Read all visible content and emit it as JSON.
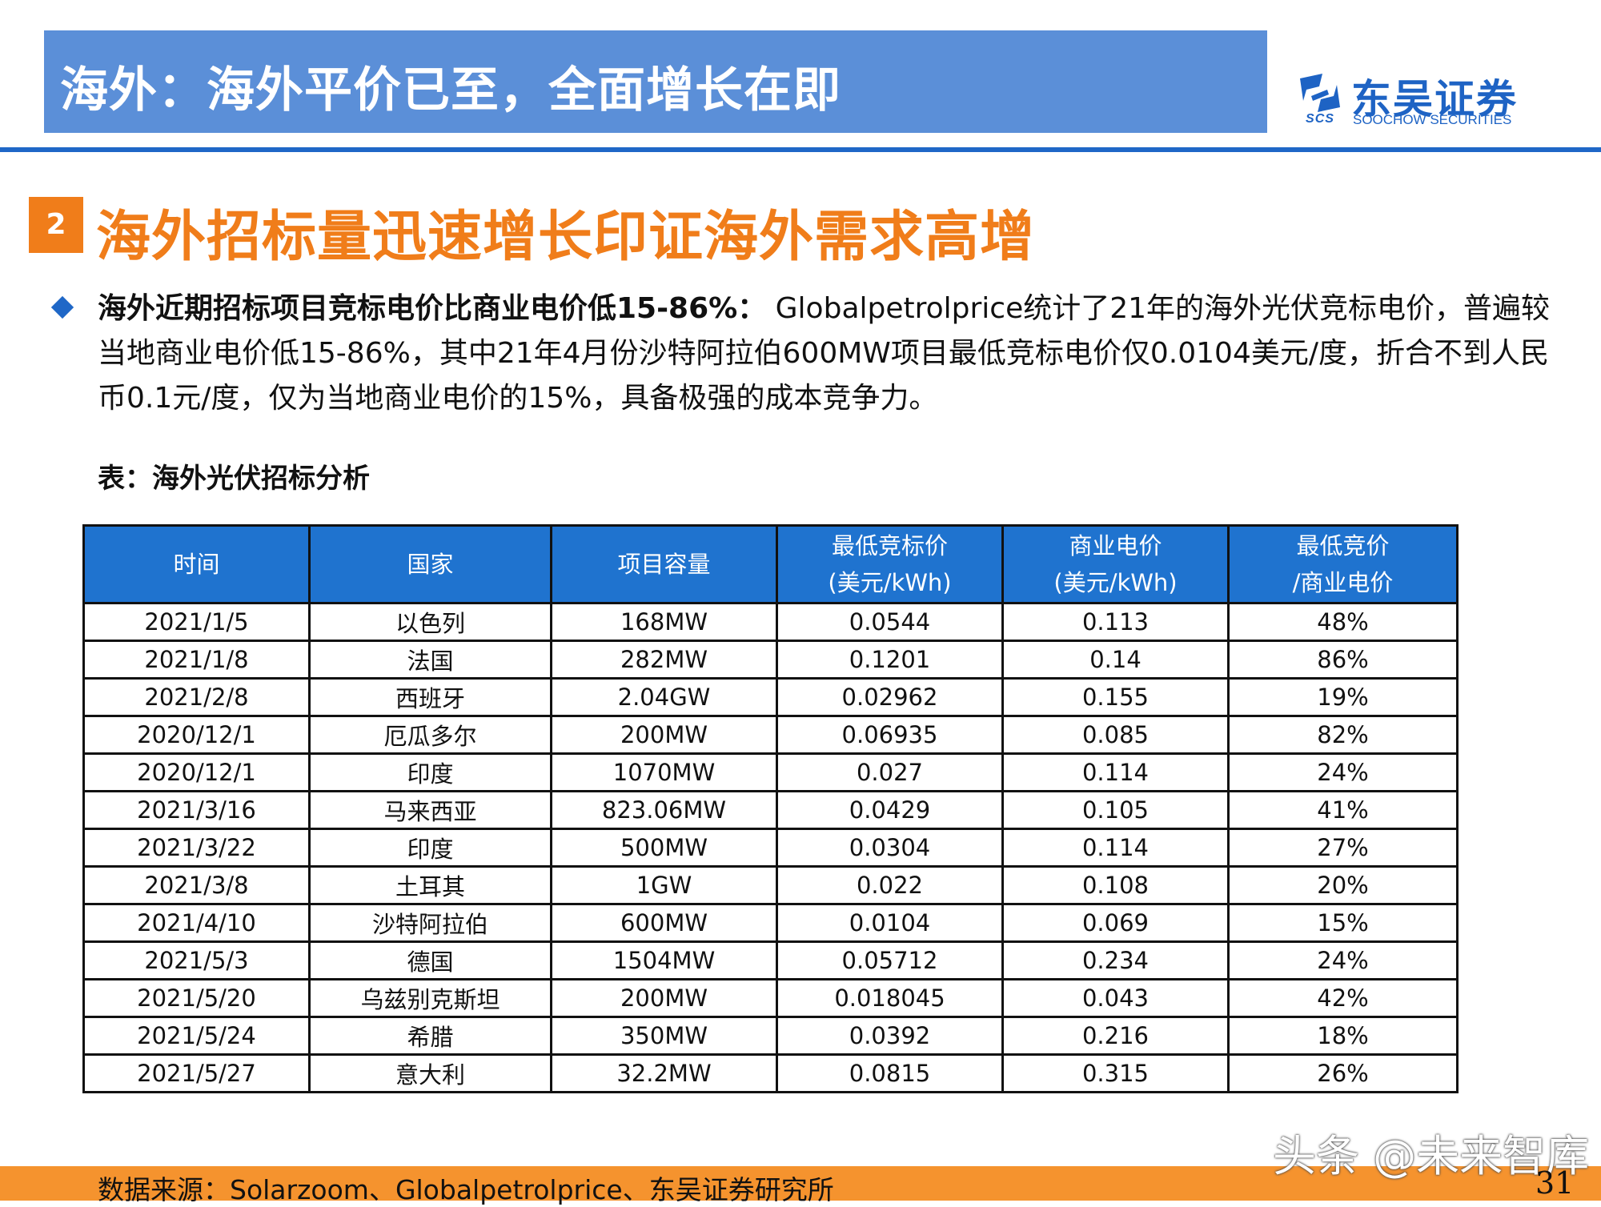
{
  "header": {
    "title": "海外：海外平价已至，全面增长在即"
  },
  "logo": {
    "name_cn": "东吴证券",
    "name_en": "SOOCHOW SECURITIES",
    "mark_text": "SCS"
  },
  "section": {
    "number": "2",
    "title": "海外招标量迅速增长印证海外需求高增"
  },
  "bullet": {
    "bold_text": "海外近期招标项目竞标电价比商业电价低15-86%：",
    "text": " Globalpetrolprice统计了21年的海外光伏竞标电价，普遍较当地商业电价低15-86%，其中21年4月份沙特阿拉伯600MW项目最低竞标电价仅0.0104美元/度，折合不到人民币0.1元/度，仅为当地商业电价的15%，具备极强的成本竞争力。"
  },
  "table": {
    "caption": "表：海外光伏招标分析",
    "headers": [
      {
        "line1": "时间",
        "line2": ""
      },
      {
        "line1": "国家",
        "line2": ""
      },
      {
        "line1": "项目容量",
        "line2": ""
      },
      {
        "line1": "最低竞标价",
        "line2": "(美元/kWh)"
      },
      {
        "line1": "商业电价",
        "line2": "(美元/kWh)"
      },
      {
        "line1": "最低竞价",
        "line2": "/商业电价"
      }
    ],
    "rows": [
      [
        "2021/1/5",
        "以色列",
        "168MW",
        "0.0544",
        "0.113",
        "48%"
      ],
      [
        "2021/1/8",
        "法国",
        "282MW",
        "0.1201",
        "0.14",
        "86%"
      ],
      [
        "2021/2/8",
        "西班牙",
        "2.04GW",
        "0.02962",
        "0.155",
        "19%"
      ],
      [
        "2020/12/1",
        "厄瓜多尔",
        "200MW",
        "0.06935",
        "0.085",
        "82%"
      ],
      [
        "2020/12/1",
        "印度",
        "1070MW",
        "0.027",
        "0.114",
        "24%"
      ],
      [
        "2021/3/16",
        "马来西亚",
        "823.06MW",
        "0.0429",
        "0.105",
        "41%"
      ],
      [
        "2021/3/22",
        "印度",
        "500MW",
        "0.0304",
        "0.114",
        "27%"
      ],
      [
        "2021/3/8",
        "土耳其",
        "1GW",
        "0.022",
        "0.108",
        "20%"
      ],
      [
        "2021/4/10",
        "沙特阿拉伯",
        "600MW",
        "0.0104",
        "0.069",
        "15%"
      ],
      [
        "2021/5/3",
        "德国",
        "1504MW",
        "0.05712",
        "0.234",
        "24%"
      ],
      [
        "2021/5/20",
        "乌兹别克斯坦",
        "200MW",
        "0.018045",
        "0.043",
        "42%"
      ],
      [
        "2021/5/24",
        "希腊",
        "350MW",
        "0.0392",
        "0.216",
        "18%"
      ],
      [
        "2021/5/27",
        "意大利",
        "32.2MW",
        "0.0815",
        "0.315",
        "26%"
      ]
    ]
  },
  "footer": {
    "source": "数据来源：Solarzoom、Globalpetrolprice、东吴证券研究所",
    "page_number": "31",
    "watermark": "头条 @未来智库"
  },
  "colors": {
    "header_bg": "#5b8fd8",
    "brand_blue": "#1f67c7",
    "table_header_bg": "#1f73cf",
    "accent_orange": "#f07d1a",
    "footer_orange": "#f5932e"
  }
}
